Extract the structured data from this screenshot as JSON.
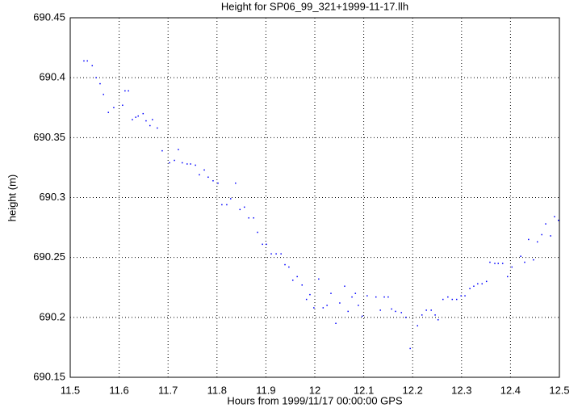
{
  "chart_data": {
    "type": "scatter",
    "title": "Height for SP06_99_321+1999-11-17.llh",
    "x_label": "Hours from 1999/11/17 00:00:00 GPS",
    "y_label": "height (m)",
    "color": "#0000ff",
    "grid": true,
    "xlim": [
      11.5,
      12.5
    ],
    "ylim": [
      690.15,
      690.45
    ],
    "xticks": [
      11.5,
      11.6,
      11.7,
      11.8,
      11.9,
      12,
      12.1,
      12.2,
      12.3,
      12.4,
      12.5
    ],
    "yticks": [
      690.15,
      690.2,
      690.25,
      690.3,
      690.35,
      690.4,
      690.45
    ],
    "series": [
      {
        "name": "height",
        "color": "#0000ff",
        "x": [
          11.528,
          11.535,
          11.545,
          11.553,
          11.561,
          11.568,
          11.578,
          11.589,
          11.607,
          11.612,
          11.619,
          11.627,
          11.634,
          11.639,
          11.649,
          11.655,
          11.663,
          11.668,
          11.678,
          11.688,
          11.703,
          11.713,
          11.721,
          11.729,
          11.739,
          11.746,
          11.756,
          11.764,
          11.774,
          11.782,
          11.792,
          11.802,
          11.81,
          11.82,
          11.828,
          11.838,
          11.847,
          11.856,
          11.865,
          11.875,
          11.883,
          11.893,
          11.901,
          11.911,
          11.921,
          11.931,
          11.939,
          11.947,
          11.955,
          11.964,
          11.974,
          11.983,
          11.99,
          11.998,
          12.008,
          12.017,
          12.025,
          12.033,
          12.043,
          12.051,
          12.061,
          12.068,
          12.076,
          12.083,
          12.089,
          12.097,
          12.107,
          12.125,
          12.134,
          12.142,
          12.15,
          12.157,
          12.165,
          12.177,
          12.186,
          12.195,
          12.21,
          12.219,
          12.228,
          12.238,
          12.246,
          12.252,
          12.262,
          12.272,
          12.281,
          12.29,
          12.299,
          12.307,
          12.317,
          12.325,
          12.333,
          12.342,
          12.351,
          12.358,
          12.368,
          12.375,
          12.384,
          12.394,
          12.403,
          12.421,
          12.429,
          12.437,
          12.447,
          12.455,
          12.464,
          12.472,
          12.482,
          12.49,
          12.498
        ],
        "values": [
          690.414,
          690.414,
          690.41,
          690.4,
          690.395,
          690.386,
          690.371,
          690.375,
          690.377,
          690.389,
          690.389,
          690.365,
          690.367,
          690.368,
          690.37,
          690.364,
          690.36,
          690.365,
          690.358,
          690.339,
          690.329,
          690.331,
          690.34,
          690.329,
          690.328,
          690.328,
          690.327,
          690.319,
          690.323,
          690.317,
          690.314,
          690.312,
          690.294,
          690.294,
          690.299,
          690.312,
          690.29,
          690.292,
          690.283,
          690.283,
          690.271,
          690.261,
          690.261,
          690.253,
          690.253,
          690.253,
          690.244,
          690.242,
          690.231,
          690.234,
          690.227,
          690.215,
          690.219,
          690.208,
          690.232,
          690.208,
          690.21,
          690.22,
          690.195,
          690.212,
          690.226,
          690.205,
          690.217,
          690.22,
          690.21,
          690.201,
          690.218,
          690.217,
          690.206,
          690.217,
          690.217,
          690.207,
          690.205,
          690.204,
          690.2,
          690.174,
          690.193,
          690.202,
          690.206,
          690.206,
          690.202,
          690.198,
          690.215,
          690.217,
          690.215,
          690.215,
          690.218,
          690.218,
          690.224,
          690.226,
          690.228,
          690.228,
          690.23,
          690.246,
          690.245,
          690.245,
          690.245,
          690.234,
          690.242,
          690.251,
          690.246,
          690.265,
          690.248,
          690.263,
          690.269,
          690.278,
          690.268,
          690.284,
          690.281
        ]
      }
    ]
  }
}
